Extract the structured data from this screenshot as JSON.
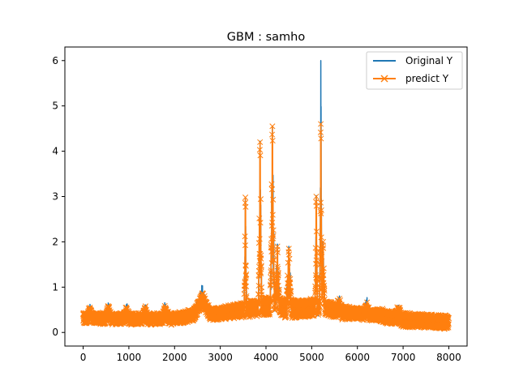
{
  "chart_data": {
    "type": "line",
    "title": "GBM : samho",
    "xlabel": "",
    "ylabel": "",
    "xlim": [
      -400,
      8400
    ],
    "ylim": [
      -0.3,
      6.3
    ],
    "xticks": [
      0,
      1000,
      2000,
      3000,
      4000,
      5000,
      6000,
      7000,
      8000
    ],
    "yticks": [
      0,
      1,
      2,
      3,
      4,
      5,
      6
    ],
    "grid": false,
    "legend_position": "upper-right",
    "colors": {
      "original": "#1f77b4",
      "predict": "#ff7f0e"
    },
    "x_start": 0,
    "x_end": 8000,
    "base_level": [
      [
        0,
        0.32
      ],
      [
        1000,
        0.3
      ],
      [
        2000,
        0.3
      ],
      [
        2400,
        0.38
      ],
      [
        2600,
        0.55
      ],
      [
        2800,
        0.4
      ],
      [
        3000,
        0.42
      ],
      [
        3500,
        0.5
      ],
      [
        3800,
        0.55
      ],
      [
        4200,
        0.62
      ],
      [
        4500,
        0.5
      ],
      [
        5000,
        0.55
      ],
      [
        5300,
        0.55
      ],
      [
        5600,
        0.45
      ],
      [
        6000,
        0.42
      ],
      [
        6500,
        0.38
      ],
      [
        7000,
        0.28
      ],
      [
        7500,
        0.25
      ],
      [
        8000,
        0.22
      ]
    ],
    "band_halfwidth": [
      [
        0,
        0.12
      ],
      [
        2000,
        0.12
      ],
      [
        3000,
        0.13
      ],
      [
        4000,
        0.2
      ],
      [
        5000,
        0.2
      ],
      [
        6000,
        0.12
      ],
      [
        7000,
        0.16
      ],
      [
        8000,
        0.14
      ]
    ],
    "spikes": [
      {
        "x": 150,
        "width": 60,
        "peak_original": 0.62,
        "peak_predict": 0.55
      },
      {
        "x": 550,
        "width": 60,
        "peak_original": 0.65,
        "peak_predict": 0.58
      },
      {
        "x": 950,
        "width": 60,
        "peak_original": 0.62,
        "peak_predict": 0.55
      },
      {
        "x": 1350,
        "width": 60,
        "peak_original": 0.6,
        "peak_predict": 0.55
      },
      {
        "x": 1800,
        "width": 80,
        "peak_original": 0.62,
        "peak_predict": 0.55
      },
      {
        "x": 2600,
        "width": 160,
        "peak_original": 0.95,
        "peak_predict": 0.85
      },
      {
        "x": 3550,
        "width": 30,
        "peak_original": 2.98,
        "peak_predict": 2.98
      },
      {
        "x": 3870,
        "width": 40,
        "peak_original": 4.22,
        "peak_predict": 4.2
      },
      {
        "x": 4140,
        "width": 50,
        "peak_original": 4.55,
        "peak_predict": 4.55
      },
      {
        "x": 4250,
        "width": 50,
        "peak_original": 1.95,
        "peak_predict": 1.9
      },
      {
        "x": 4500,
        "width": 60,
        "peak_original": 1.9,
        "peak_predict": 1.85
      },
      {
        "x": 5100,
        "width": 30,
        "peak_original": 3.02,
        "peak_predict": 3.0
      },
      {
        "x": 5200,
        "width": 30,
        "peak_original": 6.0,
        "peak_predict": 4.6
      },
      {
        "x": 5250,
        "width": 40,
        "peak_original": 2.0,
        "peak_predict": 2.0
      },
      {
        "x": 5600,
        "width": 60,
        "peak_original": 0.75,
        "peak_predict": 0.68
      },
      {
        "x": 6200,
        "width": 60,
        "peak_original": 0.7,
        "peak_predict": 0.6
      },
      {
        "x": 6900,
        "width": 60,
        "peak_original": 0.6,
        "peak_predict": 0.55
      }
    ],
    "series": [
      {
        "name": "Original Y",
        "marker": "none"
      },
      {
        "name": "predict Y",
        "marker": "x"
      }
    ]
  }
}
